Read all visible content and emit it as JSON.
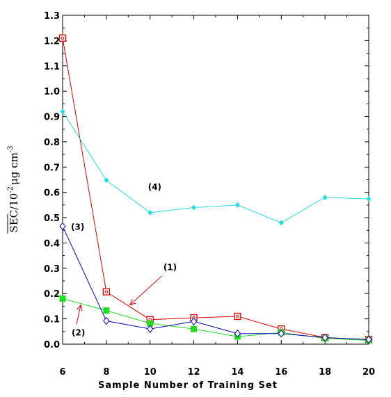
{
  "chart_data": {
    "type": "line",
    "xlabel": "Sample Number of Training Set",
    "ylabel": {
      "main": "SEC/10",
      "exp1": "-2",
      "unit": "μg cm",
      "exp2": "-3"
    },
    "xlim": [
      6,
      20
    ],
    "ylim": [
      0.0,
      1.3
    ],
    "x_ticks": [
      6,
      8,
      10,
      12,
      14,
      16,
      18,
      20
    ],
    "y_ticks": [
      0.0,
      0.1,
      0.2,
      0.3,
      0.4,
      0.5,
      0.6,
      0.7,
      0.8,
      0.9,
      1.0,
      1.1,
      1.2,
      1.3
    ],
    "x_tick_labels": [
      "6",
      "8",
      "10",
      "12",
      "14",
      "16",
      "18",
      "20"
    ],
    "y_tick_labels": [
      "0.0",
      "0.1",
      "0.2",
      "0.3",
      "0.4",
      "0.5",
      "0.6",
      "0.7",
      "0.8",
      "0.9",
      "1.0",
      "1.1",
      "1.2",
      "1.3"
    ],
    "grid": false,
    "x": [
      6,
      8,
      10,
      12,
      14,
      16,
      18,
      20
    ],
    "series": [
      {
        "id": "s1",
        "name": "(1)",
        "color": "#dd0000",
        "marker": "square-open-dot",
        "values": [
          1.21,
          0.207,
          0.097,
          0.104,
          0.11,
          0.06,
          0.026,
          0.018
        ]
      },
      {
        "id": "s2",
        "name": "(2)",
        "color": "#22dd22",
        "marker": "square-filled",
        "values": [
          0.18,
          0.133,
          0.082,
          0.06,
          0.03,
          0.046,
          0.023,
          0.015
        ]
      },
      {
        "id": "s3",
        "name": "(3)",
        "color": "#0000bb",
        "marker": "diamond-open",
        "values": [
          0.466,
          0.092,
          0.06,
          0.09,
          0.042,
          0.042,
          0.026,
          0.018
        ]
      },
      {
        "id": "s4",
        "name": "(4)",
        "color": "#22dddd",
        "marker": "diamond-filled",
        "values": [
          0.92,
          0.648,
          0.52,
          0.54,
          0.55,
          0.48,
          0.58,
          0.574
        ]
      }
    ],
    "annotations": [
      {
        "text": "(1)",
        "series": "s1",
        "arrow": true
      },
      {
        "text": "(2)",
        "series": "s2",
        "arrow": true
      },
      {
        "text": "(3)",
        "series": "s3",
        "arrow": false
      },
      {
        "text": "(4)",
        "series": "s4",
        "arrow": false
      }
    ]
  }
}
